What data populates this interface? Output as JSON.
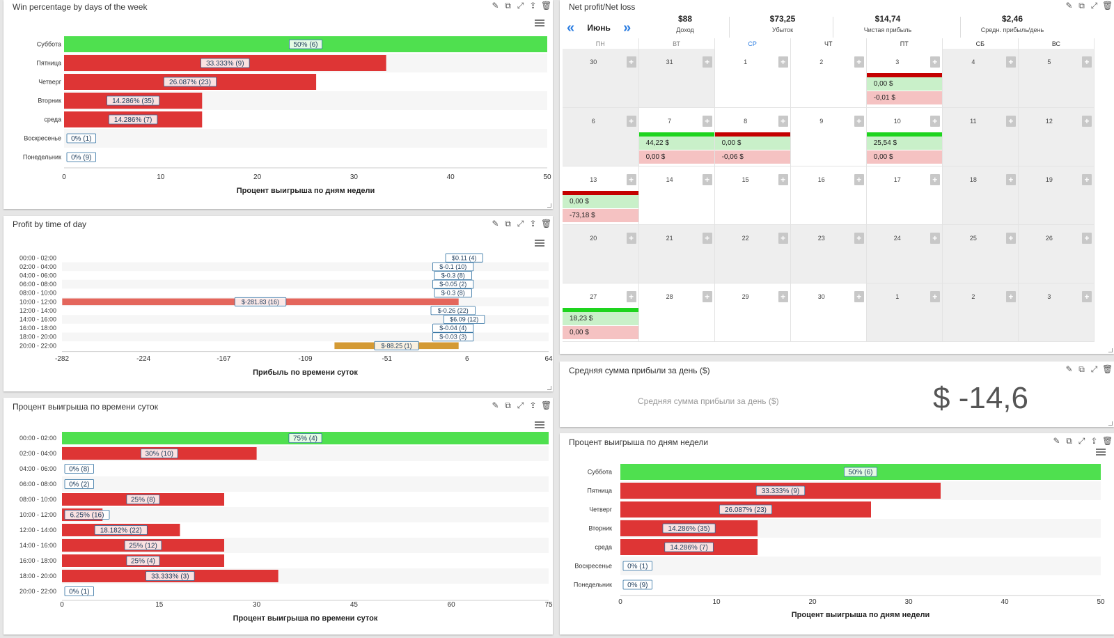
{
  "tool_icons": [
    "✎",
    "⧉",
    "⤢",
    "⇪",
    "🗑"
  ],
  "colors": {
    "green": "#4fe04f",
    "red": "#de3535",
    "salmon": "#e4665c",
    "orange": "#d49a34",
    "accent": "#2b7de1"
  },
  "widget_win_week": {
    "title": "Win percentage by days of the week",
    "chart_data": {
      "type": "bar",
      "orientation": "horizontal",
      "categories": [
        "Суббота",
        "Пятница",
        "Четверг",
        "Вторник",
        "среда",
        "Воскресенье",
        "Понедельник"
      ],
      "values": [
        50,
        33.333,
        26.087,
        14.286,
        14.286,
        0,
        0
      ],
      "labels": [
        "50% (6)",
        "33.333% (9)",
        "26.087% (23)",
        "14.286% (35)",
        "14.286% (7)",
        "0% (1)",
        "0% (9)"
      ],
      "highlight": [
        true,
        false,
        false,
        false,
        false,
        false,
        false
      ],
      "xlabel": "Процент выигрыша по дням недели",
      "xlim": [
        0,
        50
      ],
      "ticks": [
        0,
        10,
        20,
        30,
        40,
        50
      ],
      "tick_labels": [
        "0",
        "10",
        "20",
        "30",
        "40",
        "50"
      ]
    }
  },
  "widget_profit_time": {
    "title": "Profit by time of day",
    "chart_data": {
      "type": "bar",
      "orientation": "horizontal",
      "categories": [
        "00:00 - 02:00",
        "02:00 - 04:00",
        "04:00 - 06:00",
        "06:00 - 08:00",
        "08:00 - 10:00",
        "10:00 - 12:00",
        "12:00 - 14:00",
        "14:00 - 16:00",
        "16:00 - 18:00",
        "18:00 - 20:00",
        "20:00 - 22:00"
      ],
      "values": [
        0.11,
        -0.1,
        -0.3,
        -0.05,
        -0.3,
        -281.83,
        -0.26,
        6.09,
        -0.04,
        -0.03,
        -88.25
      ],
      "labels": [
        "$0.11 (4)",
        "$-0.1 (10)",
        "$-0.3 (8)",
        "$-0.05 (2)",
        "$-0.3 (8)",
        "$-281.83 (16)",
        "$-0.26 (22)",
        "$6.09 (12)",
        "$-0.04 (4)",
        "$-0.03 (3)",
        "$-88.25 (1)"
      ],
      "bar_colors": [
        "",
        "",
        "",
        "",
        "",
        "#e4665c",
        "",
        "",
        "",
        "",
        "#d49a34"
      ],
      "xlabel": "Прибыль по времени суток",
      "xlim": [
        -282,
        64
      ],
      "ticks": [
        -282,
        -224,
        -167,
        -109,
        -51,
        6,
        64
      ],
      "tick_labels": [
        "-282",
        "-224",
        "-167",
        "-109",
        "-51",
        "6",
        "64"
      ]
    }
  },
  "widget_win_time": {
    "title": "Процент выигрыша по времени суток",
    "chart_data": {
      "type": "bar",
      "orientation": "horizontal",
      "categories": [
        "00:00 - 02:00",
        "02:00 - 04:00",
        "04:00 - 06:00",
        "06:00 - 08:00",
        "08:00 - 10:00",
        "10:00 - 12:00",
        "12:00 - 14:00",
        "14:00 - 16:00",
        "16:00 - 18:00",
        "18:00 - 20:00",
        "20:00 - 22:00"
      ],
      "values": [
        75,
        30,
        0,
        0,
        25,
        6.25,
        18.182,
        25,
        25,
        33.333,
        0
      ],
      "labels": [
        "75% (4)",
        "30% (10)",
        "0% (8)",
        "0% (2)",
        "25% (8)",
        "6.25% (16)",
        "18.182% (22)",
        "25% (12)",
        "25% (4)",
        "33.333% (3)",
        "0% (1)"
      ],
      "highlight": [
        true,
        false,
        false,
        false,
        false,
        false,
        false,
        false,
        false,
        false,
        false
      ],
      "xlabel": "Процент выигрыша по времени суток",
      "xlim": [
        0,
        75
      ],
      "ticks": [
        0,
        15,
        30,
        45,
        60,
        75
      ],
      "tick_labels": [
        "0",
        "15",
        "30",
        "45",
        "60",
        "75"
      ]
    }
  },
  "widget_win_week2": {
    "title": "Процент выигрыша по дням недели",
    "chart_data": {
      "type": "bar",
      "orientation": "horizontal",
      "categories": [
        "Суббота",
        "Пятница",
        "Четверг",
        "Вторник",
        "среда",
        "Воскресенье",
        "Понедельник"
      ],
      "values": [
        50,
        33.333,
        26.087,
        14.286,
        14.286,
        0,
        0
      ],
      "labels": [
        "50% (6)",
        "33.333% (9)",
        "26.087% (23)",
        "14.286% (35)",
        "14.286% (7)",
        "0% (1)",
        "0% (9)"
      ],
      "highlight": [
        true,
        false,
        false,
        false,
        false,
        false,
        false
      ],
      "xlabel": "Процент выигрыша по дням недели",
      "xlim": [
        0,
        50
      ],
      "ticks": [
        0,
        10,
        20,
        30,
        40,
        50
      ],
      "tick_labels": [
        "0",
        "10",
        "20",
        "30",
        "40",
        "50"
      ]
    }
  },
  "net_profit": {
    "title": "Net profit/Net loss",
    "prev_icon": "«",
    "next_icon": "»",
    "month": "Июнь",
    "stats": [
      {
        "value": "$88",
        "label": "Доход"
      },
      {
        "value": "$73,25",
        "label": "Убыток"
      },
      {
        "value": "$14,74",
        "label": "Чистая прибыль"
      },
      {
        "value": "$2,46",
        "label": "Средн. прибыль/день"
      }
    ],
    "weekdays": [
      "ПН",
      "ВТ",
      "СР",
      "ЧТ",
      "ПТ",
      "СБ",
      "ВС"
    ],
    "weeks": [
      [
        {
          "d": "30",
          "grey": true
        },
        {
          "d": "31",
          "grey": true
        },
        {
          "d": "1"
        },
        {
          "d": "2"
        },
        {
          "d": "3",
          "bar": "red",
          "pos": "0,00 $",
          "neg": "-0,01 $"
        },
        {
          "d": "4",
          "grey": true
        },
        {
          "d": "5",
          "grey": true
        }
      ],
      [
        {
          "d": "6",
          "grey": true
        },
        {
          "d": "7",
          "bar": "green",
          "pos": "44,22 $",
          "neg": "0,00 $"
        },
        {
          "d": "8",
          "bar": "red",
          "pos": "0,00 $",
          "neg": "-0,06 $"
        },
        {
          "d": "9"
        },
        {
          "d": "10",
          "bar": "green",
          "pos": "25,54 $",
          "neg": "0,00 $"
        },
        {
          "d": "11",
          "grey": true
        },
        {
          "d": "12",
          "grey": true
        }
      ],
      [
        {
          "d": "13",
          "bar": "red",
          "pos": "0,00 $",
          "neg": "-73,18 $"
        },
        {
          "d": "14"
        },
        {
          "d": "15"
        },
        {
          "d": "16"
        },
        {
          "d": "17"
        },
        {
          "d": "18",
          "grey": true
        },
        {
          "d": "19",
          "grey": true
        }
      ],
      [
        {
          "d": "20",
          "grey": true
        },
        {
          "d": "21",
          "grey": true
        },
        {
          "d": "22",
          "grey": true
        },
        {
          "d": "23",
          "grey": true
        },
        {
          "d": "24",
          "grey": true
        },
        {
          "d": "25",
          "grey": true
        },
        {
          "d": "26",
          "grey": true
        }
      ],
      [
        {
          "d": "27",
          "bar": "green",
          "pos": "18,23 $",
          "neg": "0,00 $"
        },
        {
          "d": "28"
        },
        {
          "d": "29"
        },
        {
          "d": "30"
        },
        {
          "d": "1",
          "grey": true
        },
        {
          "d": "2",
          "grey": true
        },
        {
          "d": "3",
          "grey": true
        }
      ]
    ]
  },
  "avg_profit": {
    "title": "Средняя сумма прибыли за день ($)",
    "label": "Средняя сумма прибыли за день ($)",
    "value": "$ -14,6"
  }
}
